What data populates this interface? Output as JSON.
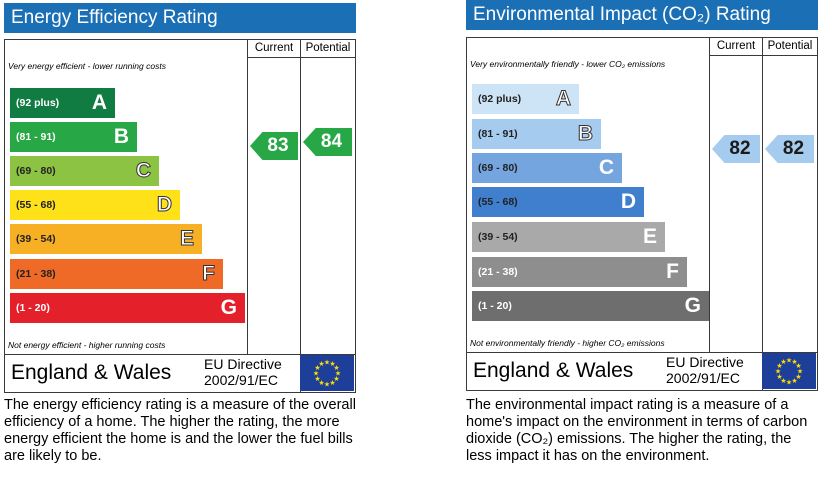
{
  "energy": {
    "title": "Energy Efficiency Rating",
    "col_current": "Current",
    "col_potential": "Potential",
    "top_note": "Very energy efficient - lower running costs",
    "bottom_note": "Not energy efficient - higher running costs",
    "bands": [
      {
        "range": "(92 plus)",
        "letter": "A",
        "color": "#107c42"
      },
      {
        "range": "(81 - 91)",
        "letter": "B",
        "color": "#27a745"
      },
      {
        "range": "(69 - 80)",
        "letter": "C",
        "color": "#8cc342"
      },
      {
        "range": "(55 - 68)",
        "letter": "D",
        "color": "#ffe119"
      },
      {
        "range": "(39 - 54)",
        "letter": "E",
        "color": "#f7af24"
      },
      {
        "range": "(21 - 38)",
        "letter": "F",
        "color": "#ef6a26"
      },
      {
        "range": "(1 - 20)",
        "letter": "G",
        "color": "#e4202a"
      }
    ],
    "current": {
      "value": "83",
      "color": "#27a745"
    },
    "potential": {
      "value": "84",
      "color": "#27a745"
    },
    "country": "England & Wales",
    "directive_line1": "EU Directive",
    "directive_line2": "2002/91/EC",
    "description": "The energy efficiency rating is a measure of the overall efficiency of a home. The higher the rating, the more energy efficient the home is and the lower the fuel bills are likely to be."
  },
  "environment": {
    "title": "Environmental Impact (CO₂) Rating",
    "col_current": "Current",
    "col_potential": "Potential",
    "top_note": "Very environmentally friendly - lower CO₂ emissions",
    "bottom_note": "Not environmentally friendly - higher CO₂ emissions",
    "bands": [
      {
        "range": "(92 plus)",
        "letter": "A",
        "color": "#cde3f6"
      },
      {
        "range": "(81 - 91)",
        "letter": "B",
        "color": "#a5cbee"
      },
      {
        "range": "(69 - 80)",
        "letter": "C",
        "color": "#74a5de"
      },
      {
        "range": "(55 - 68)",
        "letter": "D",
        "color": "#3f7fce"
      },
      {
        "range": "(39 - 54)",
        "letter": "E",
        "color": "#a9a9a9"
      },
      {
        "range": "(21 - 38)",
        "letter": "F",
        "color": "#8e8e8e"
      },
      {
        "range": "(1 - 20)",
        "letter": "G",
        "color": "#6e6e6e"
      }
    ],
    "current": {
      "value": "82",
      "color": "#a5cbee"
    },
    "potential": {
      "value": "82",
      "color": "#a5cbee"
    },
    "country": "England & Wales",
    "directive_line1": "EU Directive",
    "directive_line2": "2002/91/EC",
    "description": "The environmental impact rating is a measure of a home's impact on the environment in terms of carbon dioxide (CO₂) emissions. The higher the rating, the less impact it has on the environment."
  }
}
